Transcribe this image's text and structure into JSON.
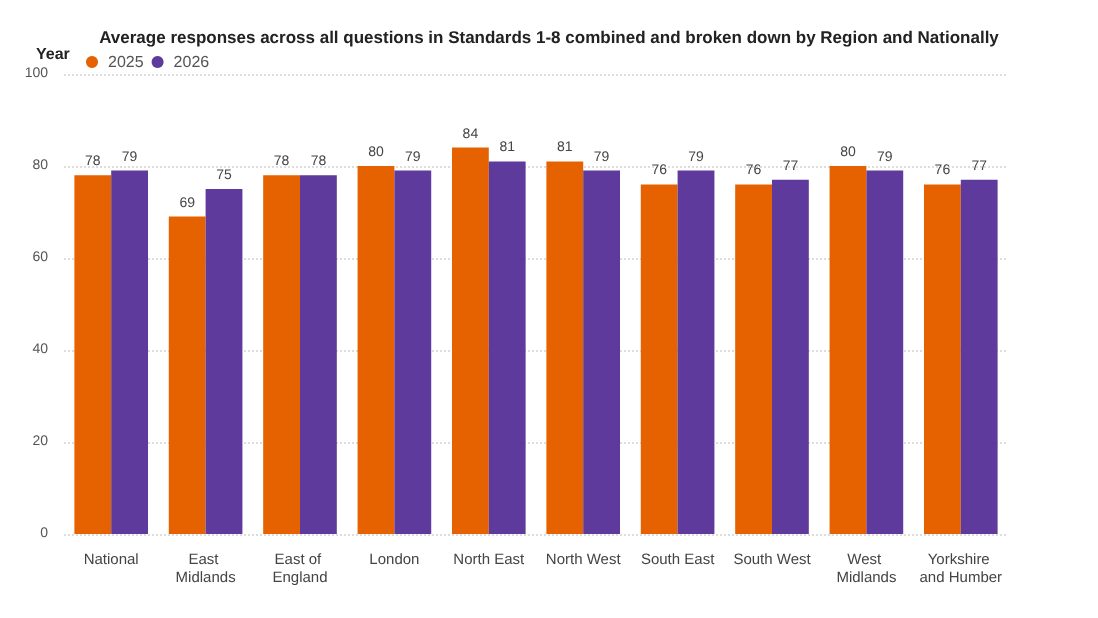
{
  "chart_data": {
    "type": "bar",
    "title": "Average responses across all questions in Standards 1-8 combined and broken down by Region and Nationally",
    "legend_title": "Year",
    "categories": [
      "National",
      "East Midlands",
      "East of England",
      "London",
      "North East",
      "North West",
      "South East",
      "South West",
      "West Midlands",
      "Yorkshire and Humber"
    ],
    "series": [
      {
        "name": "2025",
        "color": "#e66100",
        "values": [
          78,
          69,
          78,
          80,
          84,
          81,
          76,
          76,
          80,
          76
        ]
      },
      {
        "name": "2026",
        "color": "#5d3a9b",
        "values": [
          79,
          75,
          78,
          79,
          81,
          79,
          79,
          77,
          79,
          77
        ]
      }
    ],
    "ylim": [
      0,
      100
    ],
    "yticks": [
      0,
      20,
      40,
      60,
      80,
      100
    ],
    "grid": "y",
    "legend": "top left",
    "data_labels": true
  }
}
